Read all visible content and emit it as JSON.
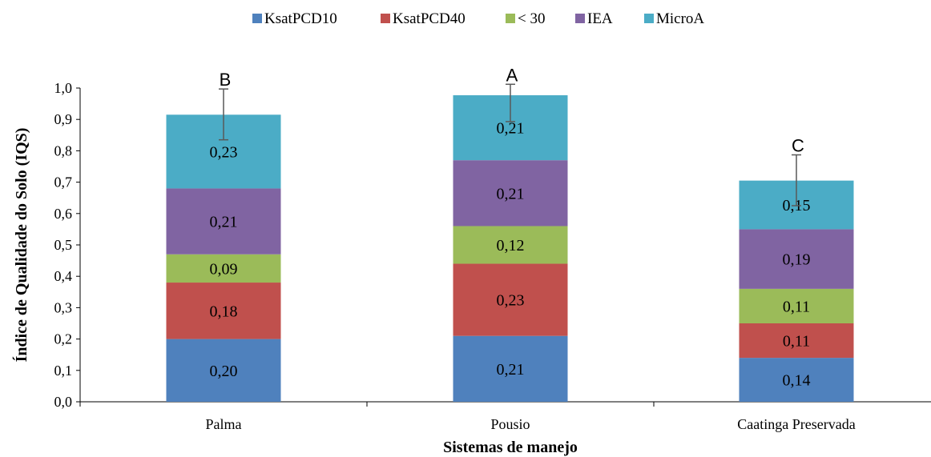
{
  "chart_data": {
    "type": "bar",
    "stacked": true,
    "title": "",
    "xlabel": "Sistemas de manejo",
    "ylabel": "Índice de Qualidade do Solo (IQS)",
    "ylim": [
      0,
      1.0
    ],
    "ytick_step": 0.1,
    "grid": false,
    "legend_position": "top",
    "categories": [
      "Palma",
      "Pousio",
      "Caatinga Preservada"
    ],
    "series": [
      {
        "name": "KsatPCD10",
        "color": "#4F81BD",
        "values": [
          0.2,
          0.21,
          0.14
        ],
        "labels": [
          "0,20",
          "0,21",
          "0,14"
        ]
      },
      {
        "name": "KsatPCD40",
        "color": "#C0504D",
        "values": [
          0.18,
          0.23,
          0.11
        ],
        "labels": [
          "0,18",
          "0,23",
          "0,11"
        ]
      },
      {
        "name": "< 30",
        "color": "#9BBB59",
        "values": [
          0.09,
          0.12,
          0.11
        ],
        "labels": [
          "0,09",
          "0,12",
          "0,11"
        ]
      },
      {
        "name": "IEA",
        "color": "#8064A2",
        "values": [
          0.21,
          0.21,
          0.19
        ],
        "labels": [
          "0,21",
          "0,21",
          "0,19"
        ]
      },
      {
        "name": "MicroA",
        "color": "#4BACC6",
        "values": [
          0.23,
          0.21,
          0.15
        ],
        "labels": [
          "0,23",
          "0,21",
          "0,15"
        ]
      }
    ],
    "totals": [
      0.915,
      0.977,
      0.705
    ],
    "error_bars": [
      {
        "low": 0.835,
        "high": 0.997
      },
      {
        "low": 0.893,
        "high": 1.012
      },
      {
        "low": 0.625,
        "high": 0.787
      }
    ],
    "significance_letters": [
      "B",
      "A",
      "C"
    ],
    "y_tick_labels": [
      "0,0",
      "0,1",
      "0,2",
      "0,3",
      "0,4",
      "0,5",
      "0,6",
      "0,7",
      "0,8",
      "0,9",
      "1,0"
    ]
  }
}
